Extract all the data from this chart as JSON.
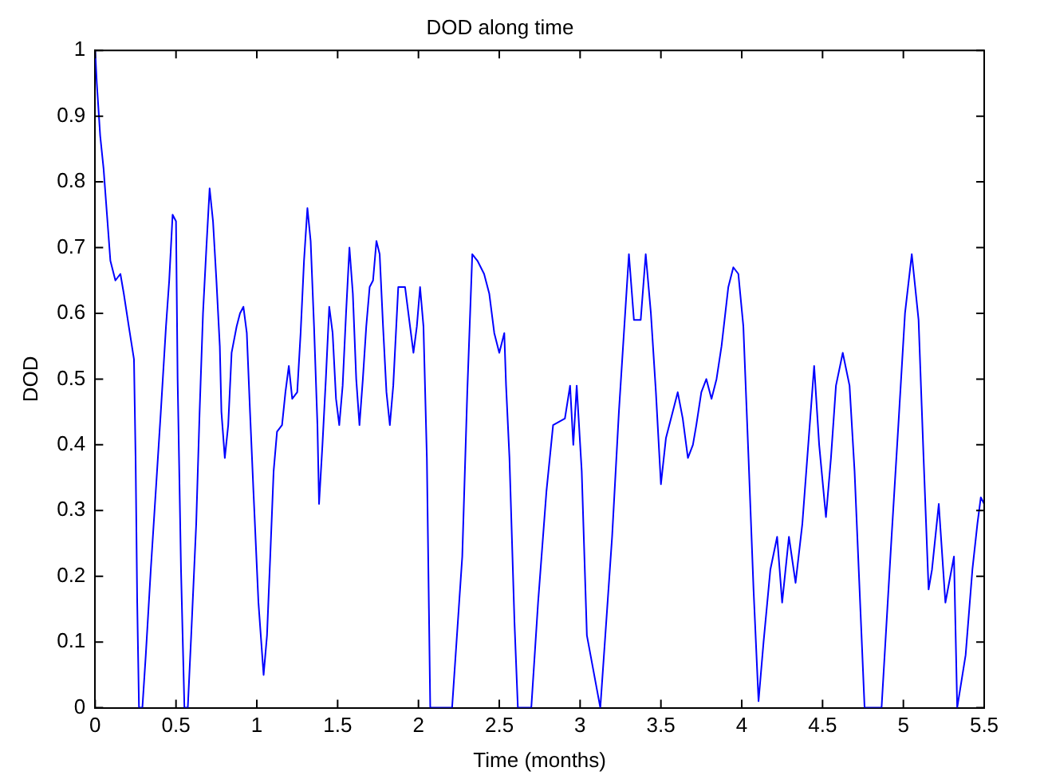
{
  "chart_data": {
    "type": "line",
    "title": "DOD along time",
    "xlabel": "Time (months)",
    "ylabel": "DOD",
    "x": [
      0,
      0.01,
      0.031,
      0.052,
      0.073,
      0.094,
      0.125,
      0.156,
      0.177,
      0.208,
      0.24,
      0.25,
      0.26,
      0.271,
      0.292,
      0.313,
      0.344,
      0.375,
      0.406,
      0.438,
      0.458,
      0.479,
      0.5,
      0.51,
      0.531,
      0.552,
      0.573,
      0.594,
      0.625,
      0.646,
      0.667,
      0.688,
      0.708,
      0.729,
      0.75,
      0.771,
      0.781,
      0.802,
      0.823,
      0.844,
      0.875,
      0.896,
      0.917,
      0.938,
      0.958,
      0.979,
      1.01,
      1.042,
      1.063,
      1.083,
      1.104,
      1.125,
      1.156,
      1.177,
      1.198,
      1.219,
      1.25,
      1.271,
      1.292,
      1.313,
      1.333,
      1.354,
      1.375,
      1.385,
      1.406,
      1.427,
      1.448,
      1.469,
      1.49,
      1.51,
      1.531,
      1.552,
      1.573,
      1.594,
      1.615,
      1.635,
      1.656,
      1.677,
      1.698,
      1.719,
      1.74,
      1.76,
      1.781,
      1.802,
      1.823,
      1.844,
      1.875,
      1.917,
      1.948,
      1.969,
      1.99,
      2.01,
      2.031,
      2.052,
      2.063,
      2.073,
      2.208,
      2.271,
      2.302,
      2.333,
      2.365,
      2.406,
      2.438,
      2.469,
      2.5,
      2.531,
      2.542,
      2.563,
      2.594,
      2.615,
      2.698,
      2.74,
      2.792,
      2.833,
      2.906,
      2.938,
      2.958,
      2.979,
      3.01,
      3.042,
      3.125,
      3.156,
      3.198,
      3.24,
      3.271,
      3.302,
      3.333,
      3.375,
      3.406,
      3.438,
      3.469,
      3.5,
      3.531,
      3.573,
      3.604,
      3.635,
      3.667,
      3.698,
      3.719,
      3.75,
      3.781,
      3.813,
      3.844,
      3.875,
      3.917,
      3.948,
      3.979,
      4.01,
      4.042,
      4.073,
      4.104,
      4.135,
      4.177,
      4.219,
      4.25,
      4.292,
      4.333,
      4.375,
      4.448,
      4.479,
      4.521,
      4.552,
      4.583,
      4.625,
      4.667,
      4.698,
      4.729,
      4.76,
      4.865,
      4.927,
      4.969,
      5.01,
      5.052,
      5.094,
      5.125,
      5.156,
      5.177,
      5.219,
      5.26,
      5.313,
      5.333,
      5.385,
      5.427,
      5.458,
      5.479,
      5.5
    ],
    "series": [
      {
        "color": "#0000ff",
        "values": [
          1.0,
          0.95,
          0.87,
          0.82,
          0.75,
          0.68,
          0.65,
          0.66,
          0.63,
          0.58,
          0.53,
          0.38,
          0.16,
          0,
          0,
          0.08,
          0.21,
          0.33,
          0.45,
          0.58,
          0.65,
          0.75,
          0.74,
          0.5,
          0.21,
          0,
          0,
          0.11,
          0.28,
          0.45,
          0.6,
          0.7,
          0.79,
          0.74,
          0.65,
          0.55,
          0.45,
          0.38,
          0.43,
          0.54,
          0.58,
          0.6,
          0.61,
          0.57,
          0.45,
          0.33,
          0.16,
          0.05,
          0.11,
          0.23,
          0.36,
          0.42,
          0.43,
          0.48,
          0.52,
          0.47,
          0.48,
          0.57,
          0.68,
          0.76,
          0.71,
          0.58,
          0.43,
          0.31,
          0.4,
          0.5,
          0.61,
          0.57,
          0.47,
          0.43,
          0.49,
          0.6,
          0.7,
          0.63,
          0.5,
          0.43,
          0.5,
          0.58,
          0.64,
          0.65,
          0.71,
          0.69,
          0.58,
          0.48,
          0.43,
          0.49,
          0.64,
          0.64,
          0.58,
          0.54,
          0.58,
          0.64,
          0.58,
          0.38,
          0.18,
          0,
          0,
          0.23,
          0.48,
          0.69,
          0.68,
          0.66,
          0.63,
          0.57,
          0.54,
          0.57,
          0.49,
          0.38,
          0.13,
          0,
          0,
          0.16,
          0.33,
          0.43,
          0.44,
          0.49,
          0.4,
          0.49,
          0.36,
          0.11,
          0,
          0.11,
          0.26,
          0.45,
          0.57,
          0.69,
          0.59,
          0.59,
          0.69,
          0.6,
          0.48,
          0.34,
          0.41,
          0.45,
          0.48,
          0.44,
          0.38,
          0.4,
          0.43,
          0.48,
          0.5,
          0.47,
          0.5,
          0.55,
          0.64,
          0.67,
          0.66,
          0.58,
          0.38,
          0.18,
          0.01,
          0.1,
          0.21,
          0.26,
          0.16,
          0.26,
          0.19,
          0.28,
          0.52,
          0.4,
          0.29,
          0.38,
          0.49,
          0.54,
          0.49,
          0.36,
          0.18,
          0,
          0,
          0.26,
          0.43,
          0.6,
          0.69,
          0.59,
          0.38,
          0.18,
          0.21,
          0.31,
          0.16,
          0.23,
          0,
          0.08,
          0.21,
          0.28,
          0.32,
          0.31
        ]
      }
    ],
    "xlim": [
      0,
      5.5
    ],
    "xticks": [
      0,
      0.5,
      1,
      1.5,
      2,
      2.5,
      3,
      3.5,
      4,
      4.5,
      5,
      5.5
    ],
    "ylim": [
      0,
      1
    ],
    "yticks": [
      0,
      0.1,
      0.2,
      0.3,
      0.4,
      0.5,
      0.6,
      0.7,
      0.8,
      0.9,
      1
    ],
    "grid": false,
    "legend": false,
    "marker": "none",
    "line_style": "solid"
  }
}
